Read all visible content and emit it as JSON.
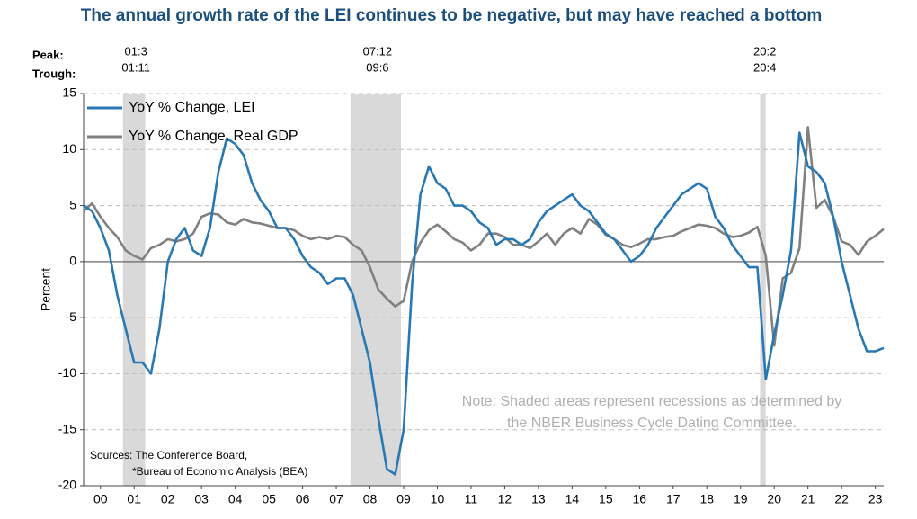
{
  "chart_data": {
    "type": "line",
    "title": "The annual growth rate of the LEI continues to be negative, but may have reached a bottom",
    "ylabel": "Percent",
    "peak_label": "Peak:",
    "trough_label": "Trough:",
    "note": [
      "Note: Shaded areas represent recessions as determined by",
      "the NBER Business Cycle Dating Committee."
    ],
    "sources": [
      "Sources: The Conference Board,",
      "*Bureau of Economic Analysis (BEA)"
    ],
    "recessions": [
      {
        "start": 2001.17,
        "end": 2001.83,
        "peak": "01:3",
        "trough": "01:11"
      },
      {
        "start": 2007.92,
        "end": 2009.42,
        "peak": "07:12",
        "trough": "09:6"
      },
      {
        "start": 2020.08,
        "end": 2020.25,
        "peak": "20:2",
        "trough": "20:4"
      }
    ],
    "recession_color": "#d9d9d9",
    "xlim": [
      2000,
      2023.75
    ],
    "xticks": [
      {
        "value": 2000.5,
        "label": "00"
      },
      {
        "value": 2001.5,
        "label": "01"
      },
      {
        "value": 2002.5,
        "label": "02"
      },
      {
        "value": 2003.5,
        "label": "03"
      },
      {
        "value": 2004.5,
        "label": "04"
      },
      {
        "value": 2005.5,
        "label": "05"
      },
      {
        "value": 2006.5,
        "label": "06"
      },
      {
        "value": 2007.5,
        "label": "07"
      },
      {
        "value": 2008.5,
        "label": "08"
      },
      {
        "value": 2009.5,
        "label": "09"
      },
      {
        "value": 2010.5,
        "label": "10"
      },
      {
        "value": 2011.5,
        "label": "11"
      },
      {
        "value": 2012.5,
        "label": "12"
      },
      {
        "value": 2013.5,
        "label": "13"
      },
      {
        "value": 2014.5,
        "label": "14"
      },
      {
        "value": 2015.5,
        "label": "15"
      },
      {
        "value": 2016.5,
        "label": "16"
      },
      {
        "value": 2017.5,
        "label": "17"
      },
      {
        "value": 2018.5,
        "label": "18"
      },
      {
        "value": 2019.5,
        "label": "19"
      },
      {
        "value": 2020.5,
        "label": "20"
      },
      {
        "value": 2021.5,
        "label": "21"
      },
      {
        "value": 2022.5,
        "label": "22"
      },
      {
        "value": 2023.5,
        "label": "23"
      }
    ],
    "ylim": [
      -20,
      15
    ],
    "yticks": [
      15,
      10,
      5,
      0,
      -5,
      -10,
      -15,
      -20
    ],
    "grid": true,
    "x": [
      2000,
      2000.25,
      2000.5,
      2000.75,
      2001,
      2001.25,
      2001.5,
      2001.75,
      2002,
      2002.25,
      2002.5,
      2002.75,
      2003,
      2003.25,
      2003.5,
      2003.75,
      2004,
      2004.25,
      2004.5,
      2004.75,
      2005,
      2005.25,
      2005.5,
      2005.75,
      2006,
      2006.25,
      2006.5,
      2006.75,
      2007,
      2007.25,
      2007.5,
      2007.75,
      2008,
      2008.25,
      2008.5,
      2008.75,
      2009,
      2009.25,
      2009.5,
      2009.75,
      2010,
      2010.25,
      2010.5,
      2010.75,
      2011,
      2011.25,
      2011.5,
      2011.75,
      2012,
      2012.25,
      2012.5,
      2012.75,
      2013,
      2013.25,
      2013.5,
      2013.75,
      2014,
      2014.25,
      2014.5,
      2014.75,
      2015,
      2015.25,
      2015.5,
      2015.75,
      2016,
      2016.25,
      2016.5,
      2016.75,
      2017,
      2017.25,
      2017.5,
      2017.75,
      2018,
      2018.25,
      2018.5,
      2018.75,
      2019,
      2019.25,
      2019.5,
      2019.75,
      2020,
      2020.25,
      2020.5,
      2020.75,
      2021,
      2021.25,
      2021.5,
      2021.75,
      2022,
      2022.25,
      2022.5,
      2022.75,
      2023,
      2023.25,
      2023.5,
      2023.75
    ],
    "series": [
      {
        "name": "YoY % Change, LEI",
        "color": "#2878b4",
        "values": [
          5,
          4.5,
          3,
          1,
          -3,
          -6,
          -9,
          -9,
          -10,
          -6,
          0,
          2,
          3,
          1,
          0.5,
          3,
          8,
          11,
          10.5,
          9.5,
          7,
          5.5,
          4.5,
          3,
          3,
          2,
          0.5,
          -0.5,
          -1,
          -2,
          -1.5,
          -1.5,
          -3,
          -6,
          -9,
          -14,
          -18.5,
          -19,
          -15,
          -2,
          6,
          8.5,
          7,
          6.5,
          5,
          5,
          4.5,
          3.5,
          3,
          1.5,
          2,
          2,
          1.5,
          2,
          3.5,
          4.5,
          5,
          5.5,
          6,
          5,
          4.5,
          3.5,
          2.5,
          2,
          1,
          0,
          0.5,
          1.5,
          3,
          4,
          5,
          6,
          6.5,
          7,
          6.5,
          4,
          3,
          1.5,
          0.5,
          -0.5,
          -0.5,
          -10.5,
          -6.5,
          -3,
          1,
          11.5,
          8.5,
          8,
          7,
          4,
          0,
          -3,
          -6,
          -8,
          -8,
          -7.7
        ]
      },
      {
        "name": "YoY % Change, Real GDP",
        "color": "#808080",
        "values": [
          4.5,
          5.2,
          4,
          3,
          2.2,
          1,
          0.5,
          0.2,
          1.2,
          1.5,
          2,
          1.8,
          2,
          2.5,
          4,
          4.3,
          4.2,
          3.5,
          3.3,
          3.8,
          3.5,
          3.4,
          3.2,
          3,
          3,
          2.8,
          2.3,
          2,
          2.2,
          2,
          2.3,
          2.2,
          1.5,
          1,
          -0.5,
          -2.5,
          -3.3,
          -4,
          -3.5,
          0,
          1.7,
          2.8,
          3.3,
          2.7,
          2,
          1.7,
          1,
          1.5,
          2.5,
          2.5,
          2.2,
          1.5,
          1.5,
          1.2,
          1.8,
          2.5,
          1.5,
          2.5,
          3,
          2.5,
          3.8,
          3.3,
          2.4,
          2,
          1.5,
          1.3,
          1.6,
          2,
          2,
          2.2,
          2.3,
          2.7,
          3,
          3.3,
          3.2,
          3,
          2.5,
          2.2,
          2.3,
          2.6,
          3.1,
          0.5,
          -7.5,
          -1.5,
          -1,
          1.2,
          12,
          4.8,
          5.5,
          4,
          1.8,
          1.5,
          0.6,
          1.8,
          2.3,
          2.9
        ]
      }
    ]
  }
}
